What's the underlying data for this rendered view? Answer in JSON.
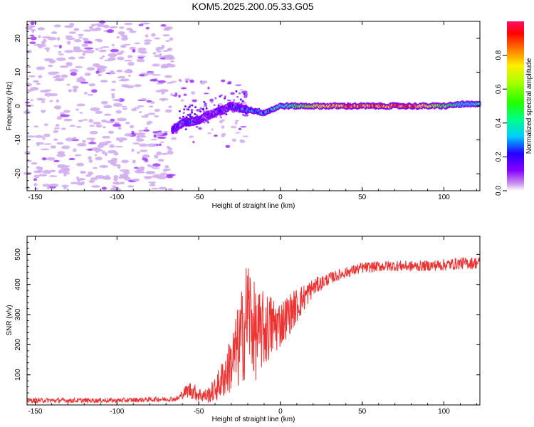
{
  "title": "KOM5.2025.200.05.33.G05",
  "chart_data": [
    {
      "type": "heatmap",
      "xlabel": "Height of straight line (km)",
      "ylabel": "Frequency (Hz)",
      "xlim": [
        -155,
        122
      ],
      "ylim": [
        -25,
        25
      ],
      "xticks": [
        "-150",
        "-100",
        "-50",
        "0",
        "50",
        "100"
      ],
      "yticks": [
        "-20",
        "-10",
        "0",
        "10",
        "20"
      ],
      "colorbar": {
        "label": "Normalized spectral amplitude",
        "range": [
          0,
          1
        ],
        "ticks": [
          "0.0",
          "0.2",
          "0.4",
          "0.6",
          "0.8"
        ]
      },
      "ridge": {
        "x": [
          -66,
          -60,
          -50,
          -40,
          -30,
          -20,
          -10,
          0,
          20,
          40,
          60,
          80,
          100,
          110,
          122
        ],
        "y": [
          -7,
          -5,
          -4,
          -2,
          0,
          -1,
          -2,
          0,
          0,
          0,
          0,
          0,
          0,
          0.5,
          0.5
        ],
        "amplitude": [
          0.2,
          0.25,
          0.2,
          0.15,
          0.2,
          0.3,
          0.35,
          0.4,
          0.7,
          0.9,
          0.85,
          0.9,
          0.6,
          0.4,
          0.4
        ]
      },
      "noise_region_x": [
        -155,
        -66
      ],
      "grid": false
    },
    {
      "type": "line",
      "xlabel": "Height of straight line (km)",
      "ylabel": "SNR (v/v)",
      "xlim": [
        -155,
        122
      ],
      "ylim": [
        0,
        560
      ],
      "xticks": [
        "-150",
        "-100",
        "-50",
        "0",
        "50",
        "100"
      ],
      "yticks": [
        "100",
        "200",
        "300",
        "400",
        "500"
      ],
      "color": "#ee3333",
      "series": [
        {
          "x": [
            -155,
            -130,
            -100,
            -80,
            -63,
            -58,
            -55,
            -50,
            -45,
            -40,
            -35,
            -30,
            -25,
            -22,
            -20,
            -15,
            -10,
            -5,
            0,
            10,
            20,
            30,
            40,
            50,
            60,
            70,
            80,
            90,
            100,
            110,
            122
          ],
          "values": [
            15,
            15,
            15,
            18,
            20,
            45,
            50,
            35,
            30,
            50,
            90,
            140,
            200,
            260,
            320,
            230,
            250,
            260,
            270,
            330,
            390,
            420,
            440,
            455,
            460,
            462,
            460,
            462,
            465,
            470,
            472
          ],
          "spread": [
            8,
            8,
            8,
            8,
            8,
            20,
            30,
            25,
            25,
            40,
            70,
            100,
            150,
            180,
            200,
            150,
            130,
            110,
            80,
            60,
            30,
            20,
            18,
            18,
            18,
            18,
            18,
            18,
            20,
            20,
            20
          ]
        }
      ],
      "grid": false
    }
  ]
}
